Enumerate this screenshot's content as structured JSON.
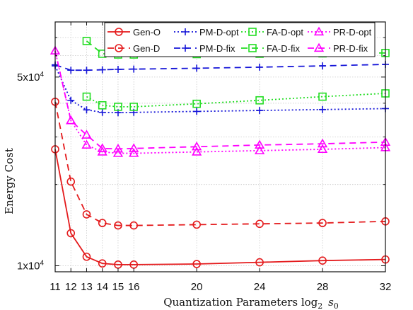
{
  "chart_data": {
    "type": "line",
    "xlabel_text": "Quantization Parameters log",
    "xlabel_sub": "2",
    "xlabel_var": "s",
    "xlabel_var_sub": "0",
    "ylabel": "Energy Cost",
    "x_scale": "linear",
    "y_scale": "log",
    "xlim": [
      11,
      32
    ],
    "ylim": [
      9500,
      80000
    ],
    "x_ticks": [
      11,
      12,
      13,
      14,
      15,
      16,
      20,
      24,
      28,
      32
    ],
    "x_tick_labels": [
      "11",
      "12",
      "13",
      "14",
      "15",
      "16",
      "20",
      "24",
      "28",
      "32"
    ],
    "y_ticks": [
      10000,
      50000
    ],
    "y_tick_labels": [
      "1x10",
      "5x10"
    ],
    "y_tick_exponent": "4",
    "grid": true,
    "legend_position": "top",
    "x": [
      11,
      12,
      13,
      14,
      15,
      16,
      20,
      24,
      28,
      32
    ],
    "series": [
      {
        "name": "Gen-O",
        "color": "#e41a1c",
        "marker": "circle",
        "style": "solid",
        "values": [
          27000,
          13200,
          10800,
          10200,
          10100,
          10100,
          10150,
          10300,
          10450,
          10550
        ]
      },
      {
        "name": "Gen-D",
        "color": "#e41a1c",
        "marker": "circle",
        "style": "dashed",
        "values": [
          40500,
          20500,
          15500,
          14400,
          14100,
          14100,
          14200,
          14300,
          14400,
          14600
        ]
      },
      {
        "name": "PM-D-opt",
        "color": "#1515d8",
        "marker": "plus",
        "style": "dotted",
        "values": [
          55000,
          41000,
          37800,
          37000,
          36900,
          37000,
          37300,
          37600,
          37900,
          38200
        ]
      },
      {
        "name": "PM-D-fix",
        "color": "#1515d8",
        "marker": "plus",
        "style": "dashed",
        "values": [
          55500,
          53000,
          53000,
          53200,
          53400,
          53500,
          53900,
          54400,
          55000,
          55700
        ]
      },
      {
        "name": "FA-D-opt",
        "color": "#22dd22",
        "marker": "square",
        "style": "dotted",
        "values": [
          null,
          null,
          42300,
          39300,
          38800,
          38800,
          39800,
          41000,
          42300,
          43500
        ]
      },
      {
        "name": "FA-D-fix",
        "color": "#22dd22",
        "marker": "square",
        "style": "dashed",
        "values": [
          null,
          null,
          68000,
          61000,
          60600,
          60600,
          60800,
          61000,
          61200,
          61400
        ]
      },
      {
        "name": "PR-D-opt",
        "color": "#ff00ff",
        "marker": "triangle",
        "style": "dotted",
        "values": [
          62500,
          34500,
          28000,
          26400,
          26100,
          26100,
          26400,
          26700,
          27000,
          27400
        ]
      },
      {
        "name": "PR-D-fix",
        "color": "#ff00ff",
        "marker": "triangle",
        "style": "dashed",
        "values": [
          62500,
          34500,
          30500,
          27200,
          27100,
          27200,
          27600,
          28000,
          28300,
          28700
        ]
      }
    ],
    "legend_layout": [
      [
        "Gen-O",
        "PM-D-opt",
        "FA-D-opt",
        "PR-D-opt"
      ],
      [
        "Gen-D",
        "PM-D-fix",
        "FA-D-fix",
        "PR-D-fix"
      ]
    ]
  }
}
